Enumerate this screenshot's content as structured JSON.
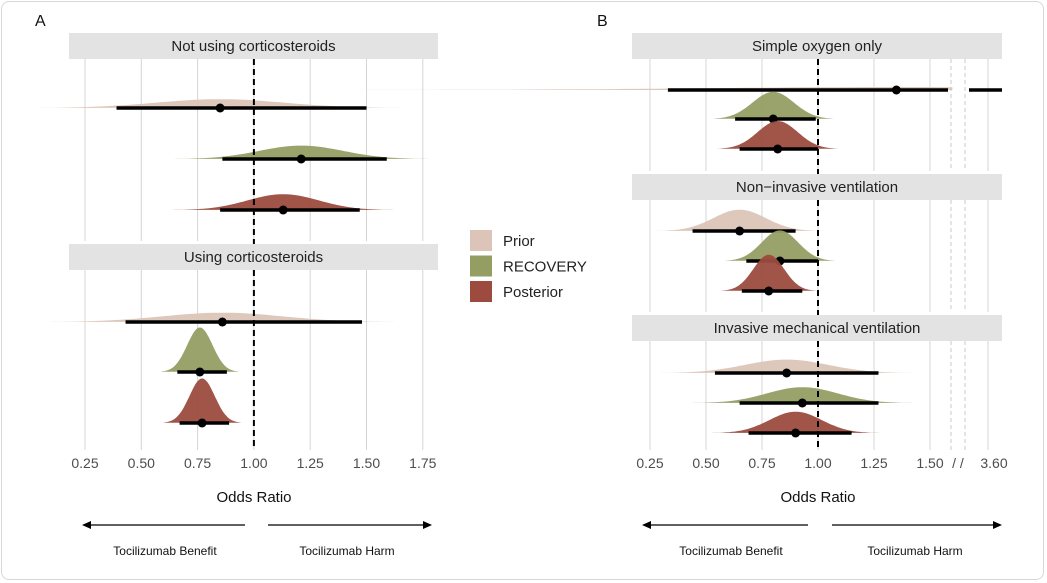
{
  "colors": {
    "Prior": "#dcc5b8",
    "RECOVERY": "#949e63",
    "Posterior": "#9c4b3e",
    "strip": "#e3e3e3",
    "grid": "#d4d4d4"
  },
  "legend": [
    "Prior",
    "RECOVERY",
    "Posterior"
  ],
  "chart_data": [
    {
      "type": "forest-density",
      "panel_label": "A",
      "xlabel": "Odds Ratio",
      "xticks": [
        "0.25",
        "0.50",
        "0.75",
        "1.00",
        "1.25",
        "1.50",
        "1.75"
      ],
      "xlim": [
        0.25,
        1.75
      ],
      "reference_line": 1.0,
      "direction_labels": {
        "left": "Tocilizumab Benefit",
        "right": "Tocilizumab Harm"
      },
      "facets": [
        {
          "title": "Not using corticosteroids",
          "rows": [
            {
              "series": "Prior",
              "median": 0.85,
              "lower": 0.39,
              "upper": 1.5
            },
            {
              "series": "RECOVERY",
              "median": 1.21,
              "lower": 0.86,
              "upper": 1.59
            },
            {
              "series": "Posterior",
              "median": 1.13,
              "lower": 0.85,
              "upper": 1.47
            }
          ]
        },
        {
          "title": "Using corticosteroids",
          "rows": [
            {
              "series": "Prior",
              "median": 0.86,
              "lower": 0.43,
              "upper": 1.48
            },
            {
              "series": "RECOVERY",
              "median": 0.76,
              "lower": 0.66,
              "upper": 0.88
            },
            {
              "series": "Posterior",
              "median": 0.77,
              "lower": 0.67,
              "upper": 0.89
            }
          ]
        }
      ]
    },
    {
      "type": "forest-density",
      "panel_label": "B",
      "xlabel": "Odds Ratio",
      "xticks": [
        "0.25",
        "0.50",
        "0.75",
        "1.00",
        "1.25",
        "1.50",
        "3.60"
      ],
      "axis_break": "/ /",
      "xlim": [
        0.25,
        3.6
      ],
      "reference_line": 1.0,
      "direction_labels": {
        "left": "Tocilizumab Benefit",
        "right": "Tocilizumab Harm"
      },
      "facets": [
        {
          "title": "Simple oxygen only",
          "rows": [
            {
              "series": "Prior",
              "median": 1.35,
              "lower": 0.33,
              "upper": 3.6
            },
            {
              "series": "RECOVERY",
              "median": 0.8,
              "lower": 0.63,
              "upper": 0.99
            },
            {
              "series": "Posterior",
              "median": 0.82,
              "lower": 0.65,
              "upper": 1.0
            }
          ]
        },
        {
          "title": "Non−invasive ventilation",
          "rows": [
            {
              "series": "Prior",
              "median": 0.65,
              "lower": 0.44,
              "upper": 0.9
            },
            {
              "series": "RECOVERY",
              "median": 0.83,
              "lower": 0.68,
              "upper": 1.0
            },
            {
              "series": "Posterior",
              "median": 0.78,
              "lower": 0.66,
              "upper": 0.93
            }
          ]
        },
        {
          "title": "Invasive mechanical ventilation",
          "rows": [
            {
              "series": "Prior",
              "median": 0.86,
              "lower": 0.54,
              "upper": 1.27
            },
            {
              "series": "RECOVERY",
              "median": 0.93,
              "lower": 0.65,
              "upper": 1.27
            },
            {
              "series": "Posterior",
              "median": 0.9,
              "lower": 0.69,
              "upper": 1.15
            }
          ]
        }
      ]
    }
  ]
}
